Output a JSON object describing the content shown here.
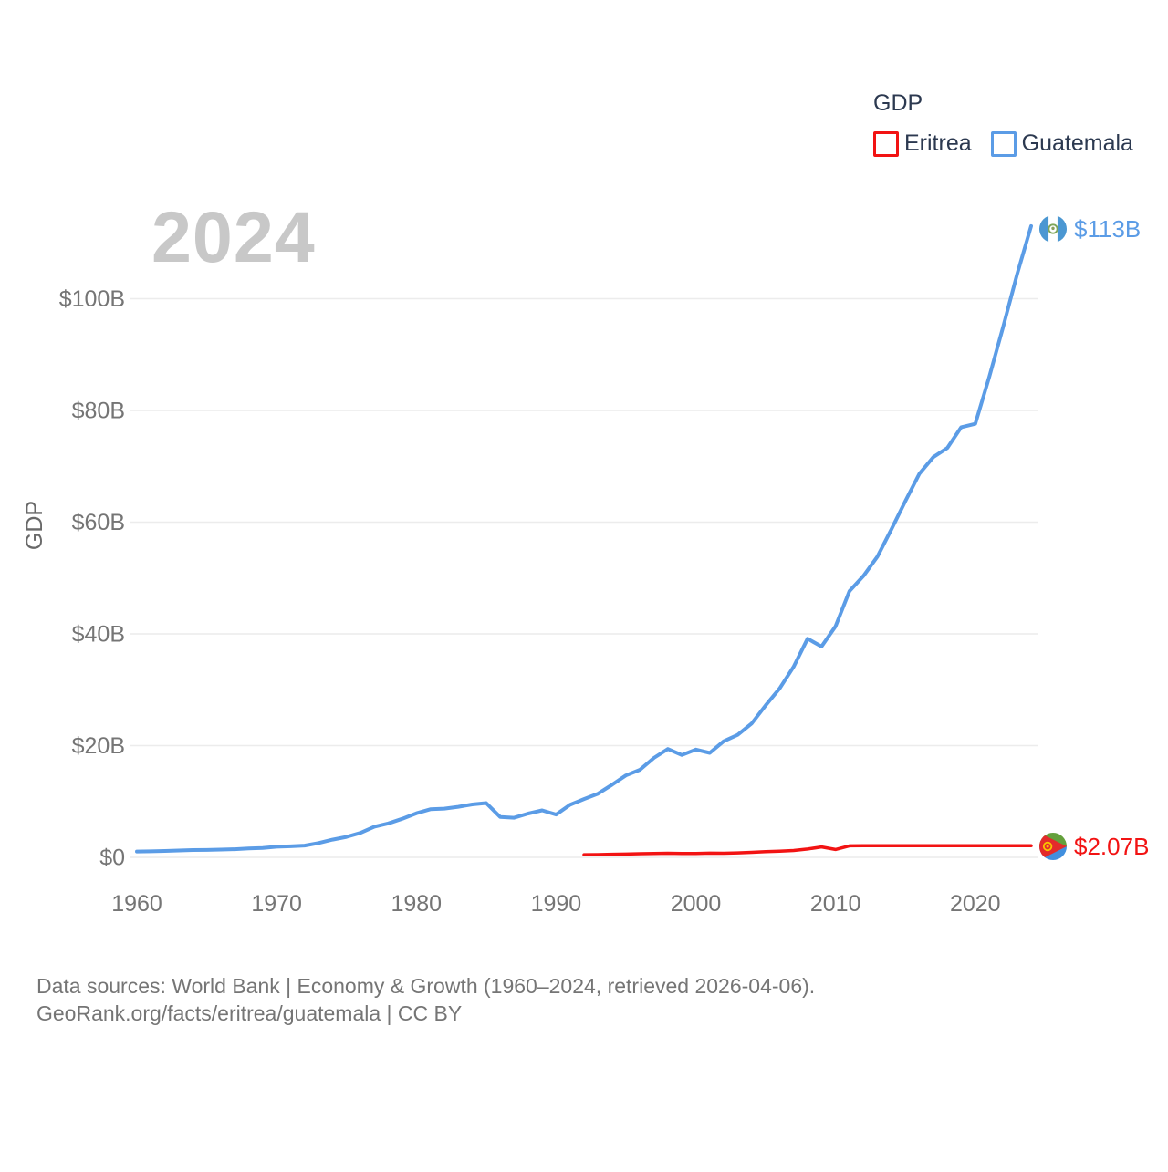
{
  "legend": {
    "title": "GDP",
    "items": [
      {
        "label": "Eritrea",
        "color": "#f21313"
      },
      {
        "label": "Guatemala",
        "color": "#5b9ce6"
      }
    ]
  },
  "watermark_year": "2024",
  "end_labels": {
    "guatemala": "$113B",
    "eritrea": "$2.07B"
  },
  "footer": {
    "line1": "Data sources: World Bank | Economy & Growth (1960–2024, retrieved 2026-04-06).",
    "line2": "GeoRank.org/facts/eritrea/guatemala | CC BY"
  },
  "chart_data": {
    "type": "line",
    "title": "GDP",
    "ylabel": "GDP",
    "xlabel": "",
    "xlim": [
      1960,
      2024
    ],
    "ylim": [
      0,
      115
    ],
    "grid": "horizontal",
    "legend_position": "top-right",
    "x_ticks": [
      1960,
      1970,
      1980,
      1990,
      2000,
      2010,
      2020
    ],
    "y_ticks": [
      {
        "value": 0,
        "label": "$0"
      },
      {
        "value": 20,
        "label": "$20B"
      },
      {
        "value": 40,
        "label": "$40B"
      },
      {
        "value": 60,
        "label": "$60B"
      },
      {
        "value": 80,
        "label": "$80B"
      },
      {
        "value": 100,
        "label": "$100B"
      }
    ],
    "unit": "billion USD",
    "series": [
      {
        "name": "Eritrea",
        "color": "#f21313",
        "stroke_width": 3.5,
        "end_label": "$2.07B",
        "flag_icon": "eritrea-flag-icon",
        "x_start": 1992,
        "x_end": 2024,
        "values": [
          0.47,
          0.49,
          0.55,
          0.58,
          0.66,
          0.7,
          0.74,
          0.71,
          0.71,
          0.75,
          0.73,
          0.8,
          0.9,
          1.01,
          1.11,
          1.22,
          1.48,
          1.86,
          1.4,
          2.05,
          2.07,
          2.07,
          2.07,
          2.07,
          2.07,
          2.07,
          2.07,
          2.07,
          2.07,
          2.07,
          2.07,
          2.07,
          2.07
        ]
      },
      {
        "name": "Guatemala",
        "color": "#5b9ce6",
        "stroke_width": 4,
        "end_label": "$113B",
        "flag_icon": "guatemala-flag-icon",
        "x_start": 1960,
        "x_end": 2024,
        "values": [
          1.04,
          1.08,
          1.14,
          1.23,
          1.31,
          1.33,
          1.39,
          1.45,
          1.58,
          1.66,
          1.9,
          1.98,
          2.1,
          2.57,
          3.16,
          3.65,
          4.37,
          5.48,
          6.07,
          6.9,
          7.88,
          8.61,
          8.72,
          9.05,
          9.47,
          9.72,
          7.23,
          7.08,
          7.84,
          8.41,
          7.65,
          9.41,
          10.44,
          11.4,
          12.98,
          14.66,
          15.67,
          17.79,
          19.4,
          18.32,
          19.29,
          18.7,
          20.78,
          21.92,
          23.97,
          27.21,
          30.23,
          34.11,
          39.14,
          37.73,
          41.34,
          47.65,
          50.39,
          53.85,
          58.72,
          63.77,
          68.66,
          71.64,
          73.28,
          77.0,
          77.6,
          86.0,
          95.0,
          104.4,
          113.0
        ]
      }
    ]
  }
}
